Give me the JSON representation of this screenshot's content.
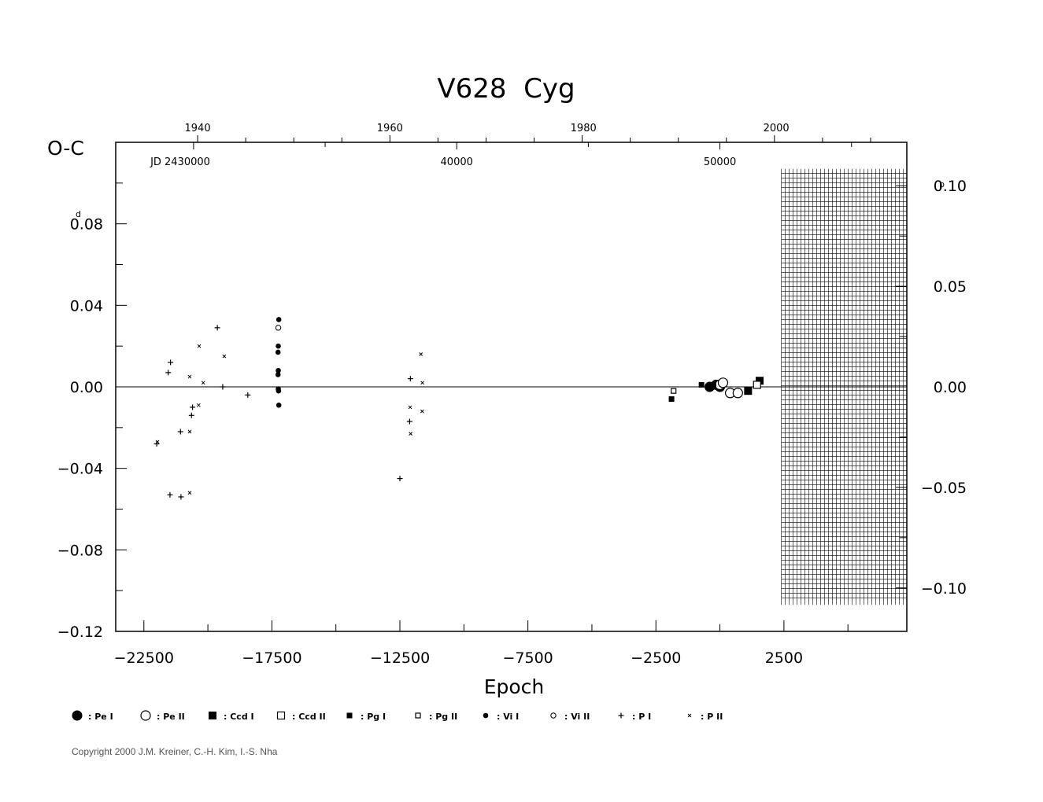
{
  "chart_data": {
    "type": "scatter",
    "title": "V628  Cyg",
    "xlabel": "Epoch",
    "ylabel": "O-C",
    "y_unit": "d",
    "y2_unit": "p",
    "xlim": [
      -23600,
      7300
    ],
    "ylim": [
      -0.12,
      0.12
    ],
    "y2lim": [
      -0.1216,
      0.1216
    ],
    "x_ticks": [
      -22500,
      -17500,
      -12500,
      -7500,
      -2500,
      2500
    ],
    "x_tick_labels": [
      "−22500",
      "−17500",
      "−12500",
      "−7500",
      "−2500",
      "2500"
    ],
    "y_ticks": [
      0.08,
      0.04,
      0.0,
      -0.04,
      -0.08,
      -0.12
    ],
    "y_tick_labels": [
      "0.08",
      "0.04",
      "0.00",
      "−0.04",
      "−0.08",
      "−0.12"
    ],
    "y2_ticks": [
      0.1,
      0.05,
      0.0,
      -0.05,
      -0.1
    ],
    "y2_tick_labels": [
      "0.10",
      "0.05",
      "0.00",
      "−0.05",
      "−0.10"
    ],
    "top_year_ticks": [
      {
        "x": -20400,
        "label": "1940"
      },
      {
        "x": -12890,
        "label": "1960"
      },
      {
        "x": -5330,
        "label": "1980"
      },
      {
        "x": 2200,
        "label": "2000"
      }
    ],
    "top_jd_ticks": [
      {
        "x": -20400,
        "label": "JD 2430000"
      },
      {
        "x": -10280,
        "label": "40000"
      },
      {
        "x": 0,
        "label": "50000"
      }
    ],
    "hatched_region_x": [
      2400,
      7300
    ],
    "hatched_region_y": [
      -0.107,
      0.107
    ],
    "legend": [
      {
        "symbol": "filled-circle-large",
        "label": ": Pe I"
      },
      {
        "symbol": "open-circle-large",
        "label": ": Pe II"
      },
      {
        "symbol": "filled-square-large",
        "label": ": Ccd I"
      },
      {
        "symbol": "open-square-large",
        "label": ": Ccd II"
      },
      {
        "symbol": "filled-square-small",
        "label": ": Pg I"
      },
      {
        "symbol": "open-square-small",
        "label": ": Pg II"
      },
      {
        "symbol": "filled-circle-small",
        "label": ": Vi I"
      },
      {
        "symbol": "open-circle-small",
        "label": ": Vi II"
      },
      {
        "symbol": "plus",
        "label": ": P I"
      },
      {
        "symbol": "cross",
        "label": ": P II"
      }
    ],
    "series": [
      {
        "name": "Pe I",
        "symbol": "filled-circle-large",
        "points": [
          [
            -400,
            0.0
          ],
          [
            -150,
            0.001
          ],
          [
            0,
            0.0
          ]
        ]
      },
      {
        "name": "Pe II",
        "symbol": "open-circle-large",
        "points": [
          [
            0,
            0.001
          ],
          [
            120,
            0.002
          ],
          [
            400,
            -0.003
          ],
          [
            700,
            -0.003
          ]
        ]
      },
      {
        "name": "Ccd I",
        "symbol": "filled-square-large",
        "points": [
          [
            1100,
            -0.002
          ],
          [
            1550,
            0.003
          ]
        ]
      },
      {
        "name": "Ccd II",
        "symbol": "open-square-large",
        "points": [
          [
            1450,
            0.001
          ]
        ]
      },
      {
        "name": "Pg I",
        "symbol": "filled-square-small",
        "points": [
          [
            -1890,
            -0.006
          ],
          [
            -720,
            0.001
          ],
          [
            -250,
            0.001
          ]
        ]
      },
      {
        "name": "Pg II",
        "symbol": "open-square-small",
        "points": [
          [
            -1810,
            -0.002
          ]
        ]
      },
      {
        "name": "Vi I",
        "symbol": "filled-circle-small",
        "points": [
          [
            -17230,
            0.033
          ],
          [
            -17250,
            0.02
          ],
          [
            -17260,
            0.017
          ],
          [
            -17250,
            0.008
          ],
          [
            -17260,
            0.006
          ],
          [
            -17250,
            -0.001
          ],
          [
            -17240,
            -0.002
          ],
          [
            -17230,
            -0.009
          ]
        ]
      },
      {
        "name": "Vi II",
        "symbol": "open-circle-small",
        "points": [
          [
            -17250,
            0.029
          ]
        ]
      },
      {
        "name": "P I",
        "symbol": "plus",
        "points": [
          [
            -22000,
            -0.028
          ],
          [
            -21550,
            0.007
          ],
          [
            -21460,
            0.012
          ],
          [
            -21480,
            -0.053
          ],
          [
            -21050,
            -0.054
          ],
          [
            -21070,
            -0.022
          ],
          [
            -20600,
            -0.01
          ],
          [
            -20640,
            -0.014
          ],
          [
            -19630,
            0.029
          ],
          [
            -19420,
            0.0
          ],
          [
            -18440,
            -0.004
          ],
          [
            -12500,
            -0.045
          ],
          [
            -12090,
            0.004
          ],
          [
            -12120,
            -0.017
          ]
        ]
      },
      {
        "name": "P II",
        "symbol": "cross",
        "points": [
          [
            -21970,
            -0.027
          ],
          [
            -20710,
            -0.022
          ],
          [
            -20710,
            0.005
          ],
          [
            -20710,
            -0.052
          ],
          [
            -20360,
            -0.009
          ],
          [
            -20340,
            0.02
          ],
          [
            -20180,
            0.002
          ],
          [
            -19360,
            0.015
          ],
          [
            -11680,
            0.016
          ],
          [
            -11620,
            0.002
          ],
          [
            -11630,
            -0.012
          ],
          [
            -12100,
            -0.01
          ],
          [
            -12080,
            -0.023
          ]
        ]
      }
    ]
  },
  "footer": {
    "copyright": "Copyright 2000 J.M. Kreiner, C.-H. Kim, I.-S. Nha"
  }
}
